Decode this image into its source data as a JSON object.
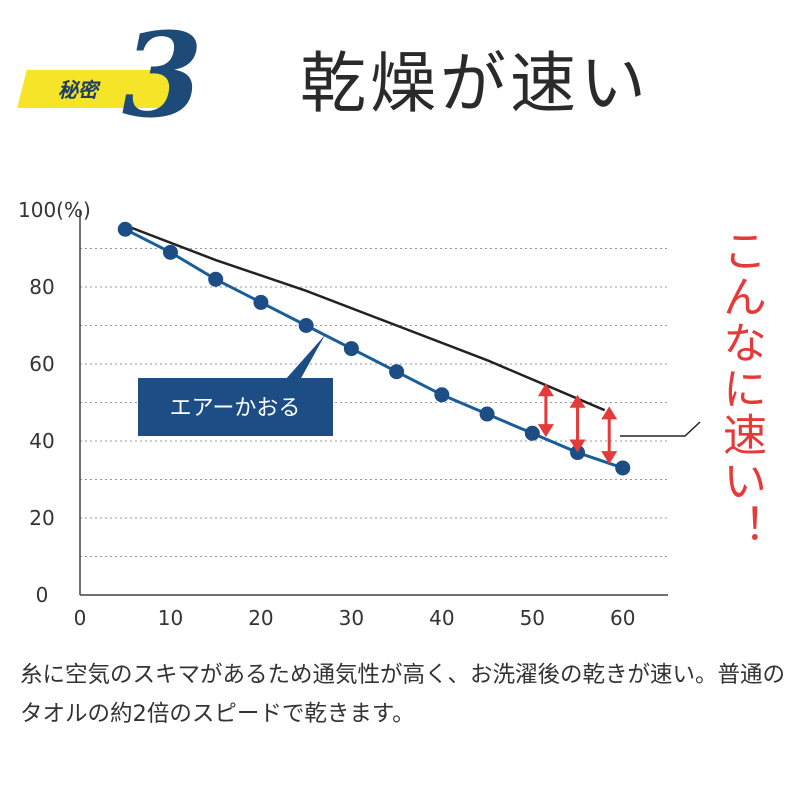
{
  "header": {
    "badge_label": "秘密",
    "badge_number": "3",
    "title": "乾燥が速い",
    "badge_color": "#f5e428",
    "number_color": "#1e4a78"
  },
  "chart_data": {
    "type": "line",
    "ylabel_tick_suffix": "100(%)",
    "x_ticks": [
      "0",
      "10",
      "20",
      "30",
      "40",
      "50",
      "60"
    ],
    "y_ticks": [
      "0",
      "20",
      "40",
      "60",
      "80"
    ],
    "xlim": [
      0,
      65
    ],
    "ylim": [
      0,
      100
    ],
    "grid": "horizontal dotted",
    "series": [
      {
        "name": "エアーかおる",
        "color": "#1a5e99",
        "marker_color": "#1c4d85",
        "x": [
          5,
          10,
          15,
          20,
          25,
          30,
          35,
          40,
          45,
          50,
          55,
          60
        ],
        "values": [
          95,
          89,
          82,
          76,
          70,
          64,
          58,
          52,
          47,
          42,
          37,
          33
        ]
      },
      {
        "color": "#222222",
        "x": [
          5,
          15,
          25,
          35,
          45,
          58
        ],
        "values": [
          96,
          87,
          79,
          70,
          61,
          48
        ]
      }
    ],
    "callout": "エアーかおる",
    "callout_color": "#1c4d85",
    "gap_arrow_color": "#e53a3a",
    "gaps": [
      {
        "x": 51.5,
        "from": 41,
        "to": 55
      },
      {
        "x": 55,
        "from": 37,
        "to": 52
      },
      {
        "x": 58.5,
        "from": 34,
        "to": 49
      }
    ]
  },
  "annotation": "こんなに速い！",
  "caption": "糸に空気のスキマがあるため通気性が高く、お洗濯後の乾きが速い。普通のタオルの約2倍のスピードで乾きます。"
}
